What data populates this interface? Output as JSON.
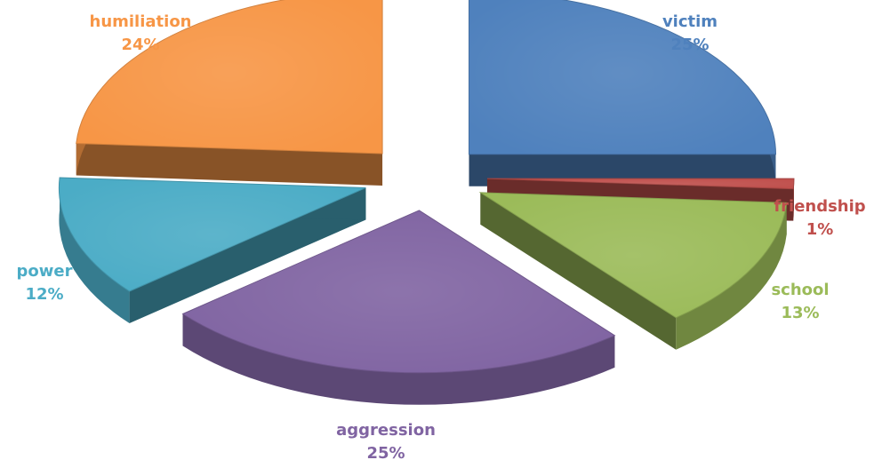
{
  "chart_data": {
    "type": "pie",
    "title": "",
    "categories": [
      "victim",
      "friendship",
      "school",
      "aggression",
      "power",
      "humiliation"
    ],
    "values": [
      25,
      1,
      13,
      25,
      12,
      24
    ],
    "value_labels": [
      "25%",
      "1%",
      "13%",
      "25%",
      "12%",
      "24%"
    ],
    "colors": [
      "#4F81BD",
      "#C0504D",
      "#9BBB59",
      "#8064A2",
      "#4BACC6",
      "#F79646"
    ],
    "exploded": true,
    "three_d": true,
    "legend": "none"
  }
}
